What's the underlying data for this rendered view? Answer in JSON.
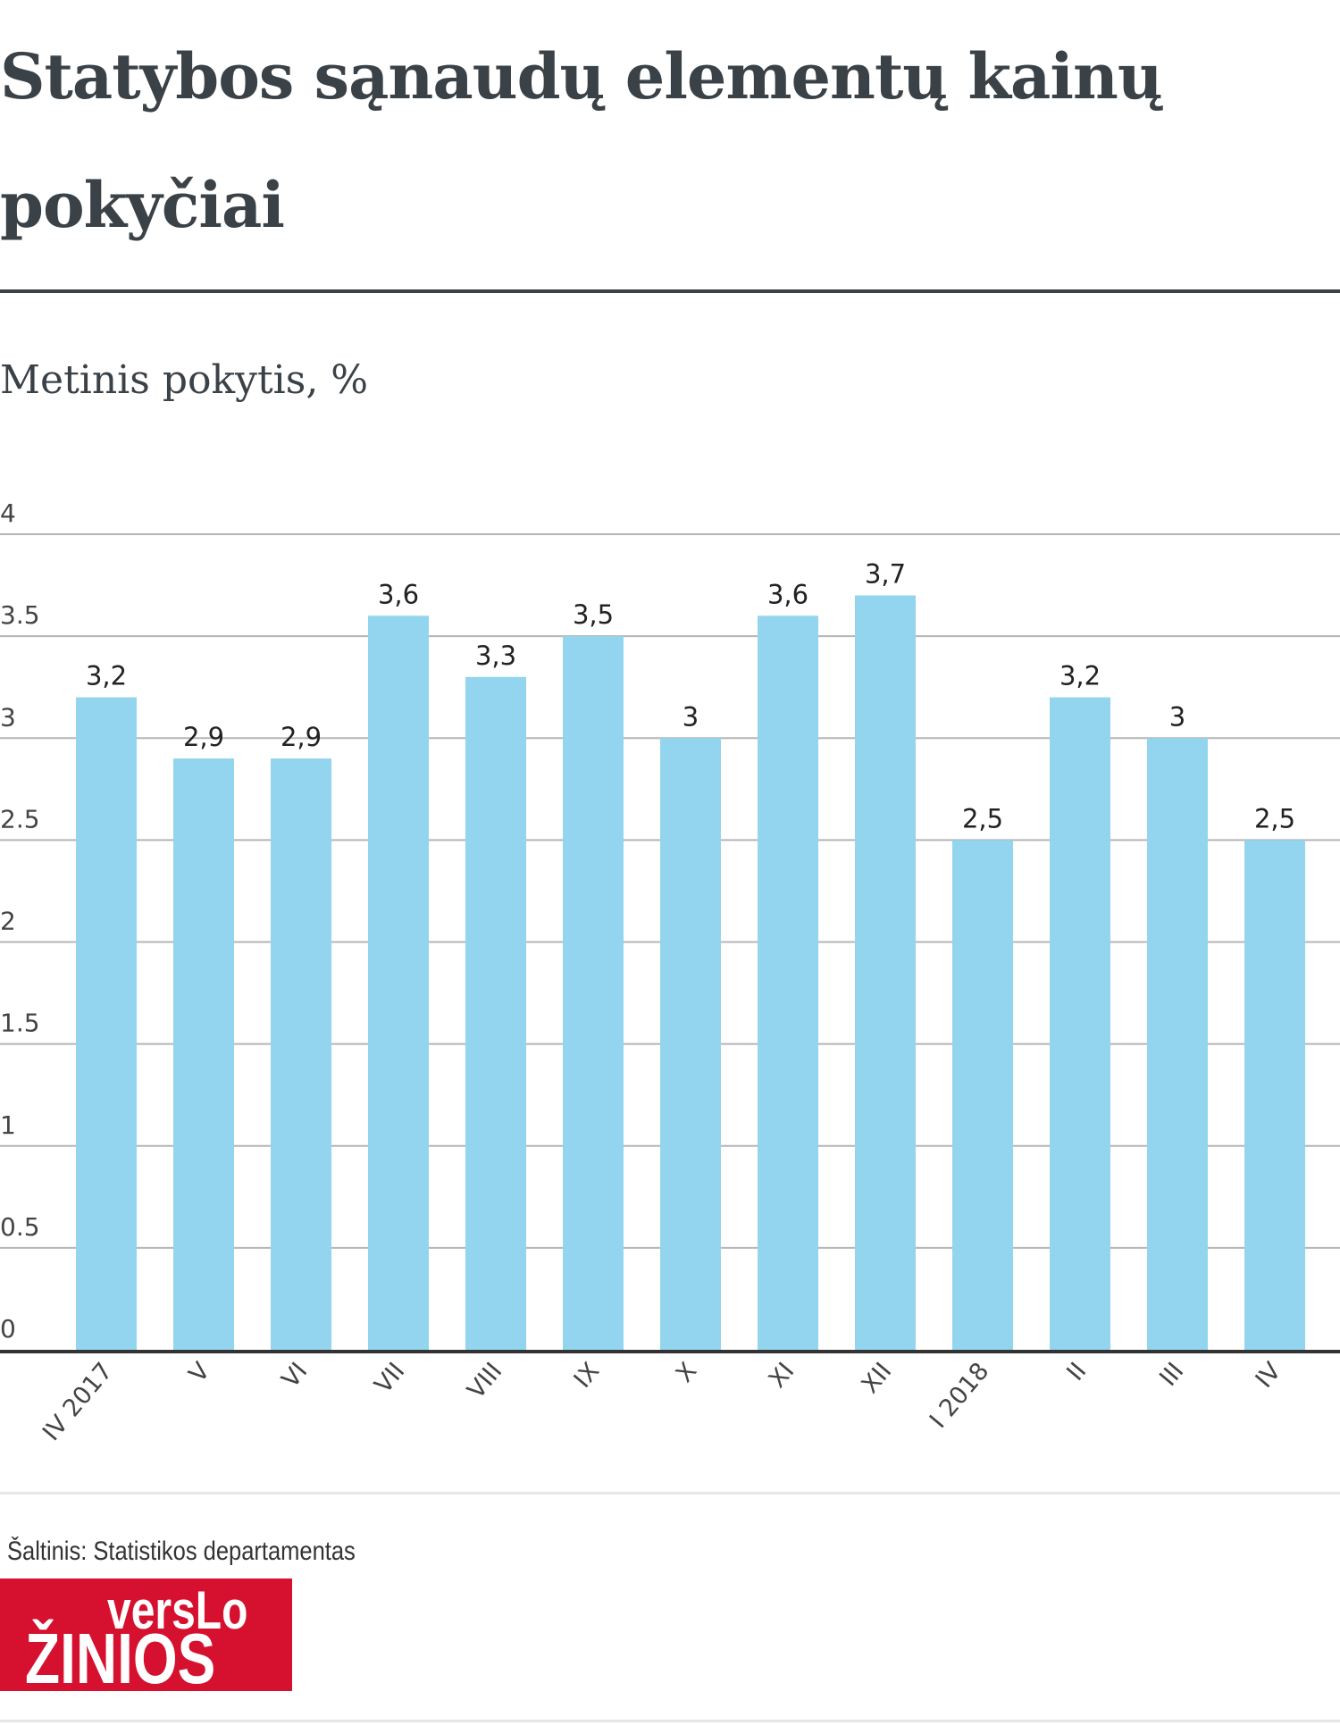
{
  "header": {
    "title": "Statybos sąnaudų elementų kainų pokyčiai",
    "subtitle": "Metinis pokytis, %"
  },
  "chart_data": {
    "type": "bar",
    "title": "Statybos sąnaudų elementų kainų pokyčiai",
    "ylabel": "Metinis pokytis, %",
    "categories": [
      "IV 2017",
      "V",
      "VI",
      "VII",
      "VIII",
      "IX",
      "X",
      "XI",
      "XII",
      "I 2018",
      "II",
      "III",
      "IV"
    ],
    "values": [
      3.2,
      2.9,
      2.9,
      3.6,
      3.3,
      3.5,
      3.0,
      3.6,
      3.7,
      2.5,
      3.2,
      3.0,
      2.5
    ],
    "data_labels": [
      "3,2",
      "2,9",
      "2,9",
      "3,6",
      "3,3",
      "3,5",
      "3",
      "3,6",
      "3,7",
      "2,5",
      "3,2",
      "3",
      "2,5"
    ],
    "yticks": [
      "0",
      "0.5",
      "1",
      "1.5",
      "2",
      "2.5",
      "3",
      "3.5",
      "4"
    ],
    "ylim": [
      0,
      4
    ],
    "grid": true,
    "bar_color": "#93d5ee"
  },
  "footer": {
    "source": "Šaltinis: Statistikos departamentas",
    "logo_line1": "versLo",
    "logo_line2": "žinios"
  }
}
